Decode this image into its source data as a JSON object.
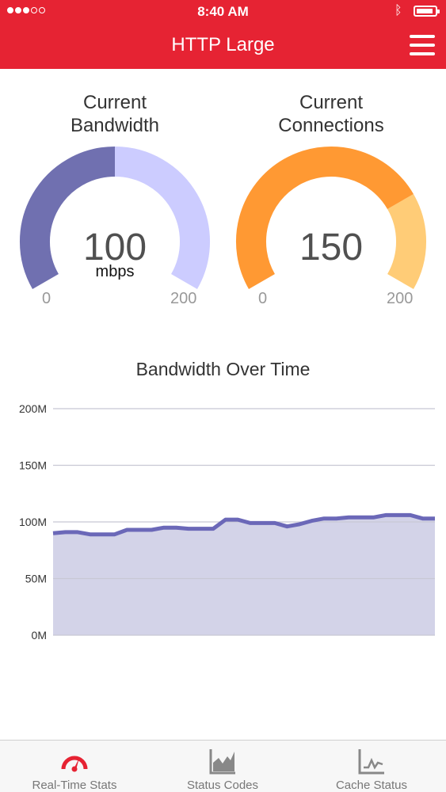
{
  "status_bar": {
    "time": "8:40 AM",
    "bluetooth_icon": "bluetooth-icon",
    "battery_level": 0.9
  },
  "header": {
    "title": "HTTP Large",
    "menu_icon": "hamburger-menu-icon"
  },
  "gauges": [
    {
      "title_line1": "Current",
      "title_line2": "Bandwidth",
      "value": "100",
      "unit": "mbps",
      "min_label": "0",
      "max_label": "200",
      "fraction": 0.5,
      "color_filled": "#7070b0",
      "color_track": "#ccccff"
    },
    {
      "title_line1": "Current",
      "title_line2": "Connections",
      "value": "150",
      "unit": "",
      "min_label": "0",
      "max_label": "200",
      "fraction": 0.75,
      "color_filled": "#ff9933",
      "color_track": "#ffcc77"
    }
  ],
  "chart_title": "Bandwidth Over Time",
  "chart_data": {
    "type": "area",
    "title": "Bandwidth Over Time",
    "xlabel": "",
    "ylabel": "",
    "y_unit": "M",
    "ylim": [
      0,
      200
    ],
    "y_ticks": [
      0,
      50,
      100,
      150,
      200
    ],
    "y_tick_labels": [
      "0M",
      "50M",
      "100M",
      "150M",
      "200M"
    ],
    "grid": true,
    "series": [
      {
        "values": [
          90,
          91,
          91,
          89,
          89,
          89,
          93,
          93,
          93,
          95,
          95,
          94,
          94,
          94,
          102,
          102,
          99,
          99,
          99,
          96,
          98,
          101,
          103,
          103,
          104,
          104,
          104,
          106,
          106,
          106,
          103,
          103
        ],
        "line_color": "#6b68b8",
        "fill_color": "#d3d3e8"
      }
    ]
  },
  "tabs": [
    {
      "label": "Real-Time Stats",
      "icon": "speedometer-icon",
      "active": true,
      "color": "#e62333"
    },
    {
      "label": "Status Codes",
      "icon": "area-chart-icon",
      "active": false,
      "color": "#888888"
    },
    {
      "label": "Cache Status",
      "icon": "line-chart-icon",
      "active": false,
      "color": "#888888"
    }
  ]
}
